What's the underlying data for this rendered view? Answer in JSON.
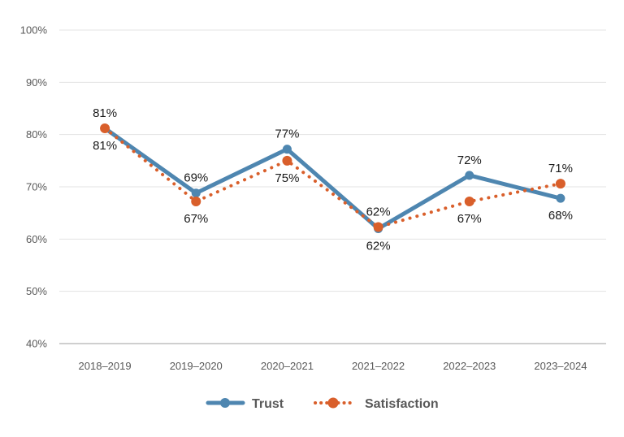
{
  "chart_data": {
    "type": "line",
    "title": "",
    "xlabel": "",
    "ylabel": "",
    "categories": [
      "2018–2019",
      "2019–2020",
      "2020–2021",
      "2021–2022",
      "2022–2023",
      "2023–2024"
    ],
    "ylim": [
      40,
      100
    ],
    "yticks": [
      40,
      50,
      60,
      70,
      80,
      90,
      100
    ],
    "ytick_labels": [
      "40%",
      "50%",
      "60%",
      "70%",
      "80%",
      "90%",
      "100%"
    ],
    "grid": true,
    "legend_position": "bottom-center",
    "series": [
      {
        "name": "Trust",
        "color": "#4e86b0",
        "style": "solid",
        "values": [
          81.2,
          68.8,
          77.2,
          62.0,
          72.2,
          67.8
        ],
        "labels": [
          "81%",
          "69%",
          "77%",
          "62%",
          "72%",
          "68%"
        ],
        "label_positions": [
          "above",
          "above",
          "above",
          "below",
          "above",
          "below"
        ]
      },
      {
        "name": "Satisfaction",
        "color": "#d95f2b",
        "style": "dotted",
        "values": [
          81.2,
          67.2,
          75.0,
          62.3,
          67.2,
          70.6
        ],
        "labels": [
          "81%",
          "67%",
          "75%",
          "62%",
          "67%",
          "71%"
        ],
        "label_positions": [
          "below",
          "below",
          "below",
          "above",
          "below",
          "above"
        ]
      }
    ]
  }
}
